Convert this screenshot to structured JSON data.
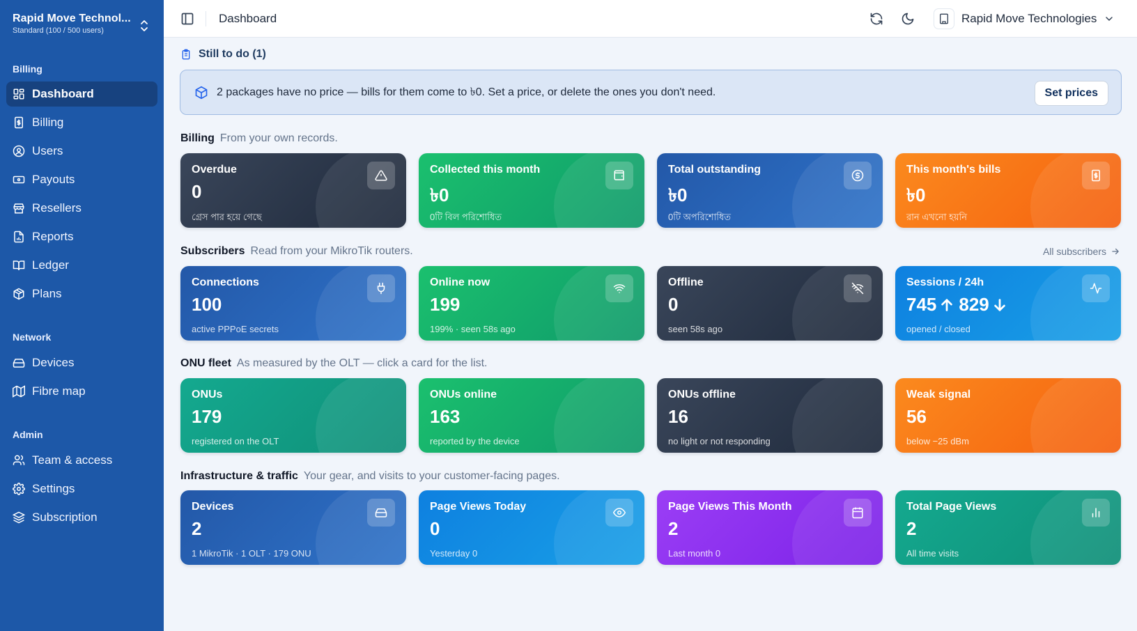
{
  "sidebar": {
    "org_name": "Rapid Move Technol...",
    "org_plan": "Standard (100 / 500 users)",
    "sections": [
      {
        "title": "Billing"
      },
      {
        "title": "Network"
      },
      {
        "title": "Admin"
      }
    ],
    "items": [
      {
        "label": "Dashboard",
        "icon": "dashboard-icon",
        "active": true
      },
      {
        "label": "Billing",
        "icon": "receipt-icon"
      },
      {
        "label": "Users",
        "icon": "user-circle-icon"
      },
      {
        "label": "Payouts",
        "icon": "banknote-icon"
      },
      {
        "label": "Resellers",
        "icon": "store-icon"
      },
      {
        "label": "Reports",
        "icon": "report-icon"
      },
      {
        "label": "Ledger",
        "icon": "book-icon"
      },
      {
        "label": "Plans",
        "icon": "package-icon"
      },
      {
        "label": "Devices",
        "icon": "hard-drive-icon"
      },
      {
        "label": "Fibre map",
        "icon": "map-icon"
      },
      {
        "label": "Team & access",
        "icon": "users-icon"
      },
      {
        "label": "Settings",
        "icon": "gear-icon"
      },
      {
        "label": "Subscription",
        "icon": "layers-icon"
      }
    ]
  },
  "topbar": {
    "title": "Dashboard",
    "org_name": "Rapid Move Technologies"
  },
  "todo": {
    "heading": "Still to do (1)",
    "alert_text": "2 packages have no price — bills for them come to ৳0. Set a price, or delete the ones you don't need.",
    "button": "Set prices"
  },
  "sections": {
    "billing": {
      "title": "Billing",
      "desc": "From your own records."
    },
    "subscribers": {
      "title": "Subscribers",
      "desc": "Read from your MikroTik routers.",
      "link": "All subscribers"
    },
    "onu": {
      "title": "ONU fleet",
      "desc": "As measured by the OLT — click a card for the list."
    },
    "infra": {
      "title": "Infrastructure & traffic",
      "desc": "Your gear, and visits to your customer-facing pages."
    }
  },
  "cards": {
    "billing": [
      {
        "label": "Overdue",
        "value": "0",
        "sub": "গ্রেস পার হয়ে গেছে",
        "icon": "alert-triangle-icon"
      },
      {
        "label": "Collected this month",
        "value": "৳0",
        "sub": "0টি বিল পরিশোধিত",
        "icon": "wallet-icon"
      },
      {
        "label": "Total outstanding",
        "value": "৳0",
        "sub": "0টি অপরিশোধিত",
        "icon": "dollar-circle-icon"
      },
      {
        "label": "This month's bills",
        "value": "৳0",
        "sub": "রান এখনো হয়নি",
        "icon": "receipt-icon"
      }
    ],
    "subscribers": [
      {
        "label": "Connections",
        "value": "100",
        "sub": "active PPPoE secrets",
        "icon": "plug-icon"
      },
      {
        "label": "Online now",
        "value": "199",
        "sub": "199% · seen 58s ago",
        "icon": "wifi-icon"
      },
      {
        "label": "Offline",
        "value": "0",
        "sub": "seen 58s ago",
        "icon": "wifi-off-icon"
      },
      {
        "label": "Sessions / 24h",
        "value_a": "745",
        "value_b": "829",
        "sub": "opened / closed",
        "icon": "activity-icon"
      }
    ],
    "onu": [
      {
        "label": "ONUs",
        "value": "179",
        "sub": "registered on the OLT"
      },
      {
        "label": "ONUs online",
        "value": "163",
        "sub": "reported by the device"
      },
      {
        "label": "ONUs offline",
        "value": "16",
        "sub": "no light or not responding"
      },
      {
        "label": "Weak signal",
        "value": "56",
        "sub": "below −25 dBm"
      }
    ],
    "infra": [
      {
        "label": "Devices",
        "value": "2",
        "sub": "1 MikroTik · 1 OLT · 179 ONU",
        "icon": "hard-drive-icon"
      },
      {
        "label": "Page Views Today",
        "value": "0",
        "sub": "Yesterday 0",
        "icon": "eye-icon"
      },
      {
        "label": "Page Views This Month",
        "value": "2",
        "sub": "Last month 0",
        "icon": "calendar-icon"
      },
      {
        "label": "Total Page Views",
        "value": "2",
        "sub": "All time visits",
        "icon": "bar-chart-icon"
      }
    ]
  },
  "colors": {
    "sidebar": "#1d58a8",
    "sidebar_active": "#17427f",
    "background": "#f1f5fb",
    "alert_bg": "#dbe6f6"
  }
}
